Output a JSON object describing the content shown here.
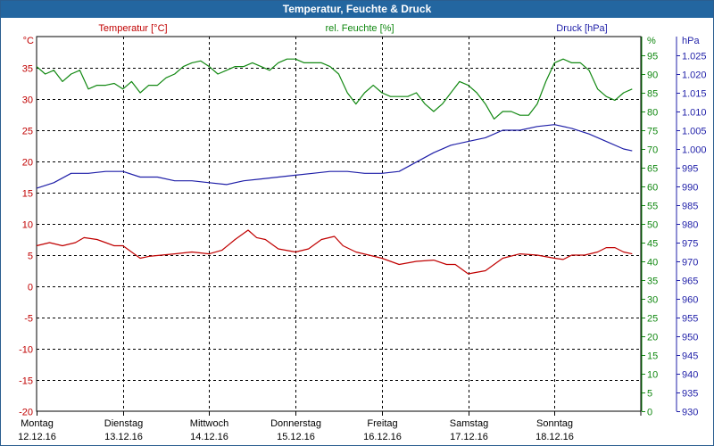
{
  "window": {
    "title": "Temperatur, Feuchte & Druck"
  },
  "colors": {
    "temperature": "#c00000",
    "humidity": "#118811",
    "pressure": "#1f1fa8",
    "grid": "#000000",
    "titlebar": "#2366a0"
  },
  "chart_data": {
    "type": "line",
    "title": "Temperatur, Feuchte & Druck",
    "x_tick_labels": [
      {
        "day": "Montag",
        "date": "12.12.16"
      },
      {
        "day": "Dienstag",
        "date": "13.12.16"
      },
      {
        "day": "Mittwoch",
        "date": "14.12.16"
      },
      {
        "day": "Donnerstag",
        "date": "15.12.16"
      },
      {
        "day": "Freitag",
        "date": "16.12.16"
      },
      {
        "day": "Samstag",
        "date": "17.12.16"
      },
      {
        "day": "Sonntag",
        "date": "18.12.16"
      }
    ],
    "x_range_days": [
      0,
      7
    ],
    "grid": true,
    "axes": {
      "temperature": {
        "label": "Temperatur [°C]",
        "unit": "°C",
        "ylim": [
          -20,
          40
        ],
        "ticks": [
          "-20",
          "-15",
          "-10",
          "-5",
          "0",
          "5",
          "10",
          "15",
          "20",
          "25",
          "30",
          "35"
        ]
      },
      "humidity": {
        "label": "rel. Feuchte [%]",
        "unit": "%",
        "ylim": [
          0,
          100
        ],
        "ticks": [
          "0",
          "5",
          "10",
          "15",
          "20",
          "25",
          "30",
          "35",
          "40",
          "45",
          "50",
          "55",
          "60",
          "65",
          "70",
          "75",
          "80",
          "85",
          "90",
          "95"
        ]
      },
      "pressure": {
        "label": "Druck [hPa]",
        "unit": "hPa",
        "ylim": [
          930,
          1030
        ],
        "ticks": [
          "930",
          "935",
          "940",
          "945",
          "950",
          "955",
          "960",
          "965",
          "970",
          "975",
          "980",
          "985",
          "990",
          "995",
          "1.000",
          "1.005",
          "1.010",
          "1.015",
          "1.020",
          "1.025"
        ]
      }
    },
    "series": [
      {
        "name": "Temperatur [°C]",
        "axis": "temperature",
        "x": [
          0,
          0.15,
          0.3,
          0.45,
          0.55,
          0.7,
          0.8,
          0.9,
          1.0,
          1.1,
          1.2,
          1.3,
          1.45,
          1.6,
          1.8,
          2.0,
          2.15,
          2.3,
          2.45,
          2.55,
          2.65,
          2.8,
          3.0,
          3.15,
          3.3,
          3.45,
          3.55,
          3.7,
          3.85,
          4.0,
          4.2,
          4.4,
          4.6,
          4.75,
          4.85,
          5.0,
          5.2,
          5.4,
          5.6,
          5.8,
          6.0,
          6.1,
          6.2,
          6.35,
          6.5,
          6.6,
          6.7,
          6.8,
          6.9
        ],
        "values": [
          6.5,
          7,
          6.5,
          7,
          7.8,
          7.5,
          7,
          6.5,
          6.5,
          5.5,
          4.5,
          4.8,
          5,
          5.2,
          5.5,
          5.2,
          5.8,
          7.5,
          9,
          7.8,
          7.5,
          6,
          5.5,
          6,
          7.5,
          8,
          6.5,
          5.5,
          5,
          4.5,
          3.5,
          4,
          4.2,
          3.5,
          3.5,
          2,
          2.5,
          4.5,
          5.2,
          5,
          4.5,
          4.3,
          5,
          5,
          5.5,
          6.2,
          6.2,
          5.5,
          5.2
        ]
      },
      {
        "name": "rel. Feuchte [%]",
        "axis": "humidity",
        "x": [
          0,
          0.1,
          0.2,
          0.3,
          0.4,
          0.5,
          0.6,
          0.7,
          0.8,
          0.9,
          1.0,
          1.1,
          1.2,
          1.3,
          1.4,
          1.5,
          1.6,
          1.7,
          1.8,
          1.9,
          2.0,
          2.1,
          2.2,
          2.3,
          2.4,
          2.5,
          2.6,
          2.7,
          2.8,
          2.9,
          3.0,
          3.1,
          3.2,
          3.3,
          3.4,
          3.5,
          3.6,
          3.7,
          3.8,
          3.9,
          4.0,
          4.1,
          4.2,
          4.3,
          4.4,
          4.5,
          4.6,
          4.7,
          4.8,
          4.9,
          5.0,
          5.1,
          5.2,
          5.3,
          5.4,
          5.5,
          5.6,
          5.7,
          5.8,
          5.9,
          6.0,
          6.1,
          6.2,
          6.3,
          6.4,
          6.5,
          6.6,
          6.7,
          6.8,
          6.9
        ],
        "values": [
          92,
          90,
          91,
          88,
          90,
          91,
          86,
          87,
          87,
          87.5,
          86,
          88,
          85,
          87,
          87,
          89,
          90,
          92,
          93,
          93.5,
          92,
          90,
          91,
          92,
          92,
          93,
          92,
          91,
          93,
          94,
          94,
          93,
          93,
          93,
          92,
          90,
          85,
          82,
          85,
          87,
          85,
          84,
          84,
          84,
          85,
          82,
          80,
          82,
          85,
          88,
          87,
          85,
          82,
          78,
          80,
          80,
          79,
          79,
          82,
          88,
          93,
          94,
          93,
          93,
          91,
          86,
          84,
          83,
          85,
          86
        ]
      },
      {
        "name": "Druck [hPa]",
        "axis": "pressure",
        "x": [
          0,
          0.2,
          0.4,
          0.6,
          0.8,
          1.0,
          1.2,
          1.4,
          1.6,
          1.8,
          2.0,
          2.2,
          2.4,
          2.6,
          2.8,
          3.0,
          3.2,
          3.4,
          3.6,
          3.8,
          4.0,
          4.2,
          4.4,
          4.6,
          4.8,
          5.0,
          5.2,
          5.4,
          5.6,
          5.8,
          6.0,
          6.2,
          6.4,
          6.6,
          6.8,
          6.9
        ],
        "values": [
          989.5,
          991,
          993.5,
          993.5,
          994,
          994,
          992.5,
          992.5,
          991.5,
          991.5,
          991,
          990.5,
          991.5,
          992,
          992.5,
          993,
          993.5,
          994,
          994,
          993.5,
          993.5,
          994,
          996.5,
          999,
          1001,
          1002,
          1003,
          1005,
          1005,
          1006,
          1006.5,
          1005.5,
          1004,
          1002,
          1000,
          999.5
        ]
      }
    ]
  }
}
